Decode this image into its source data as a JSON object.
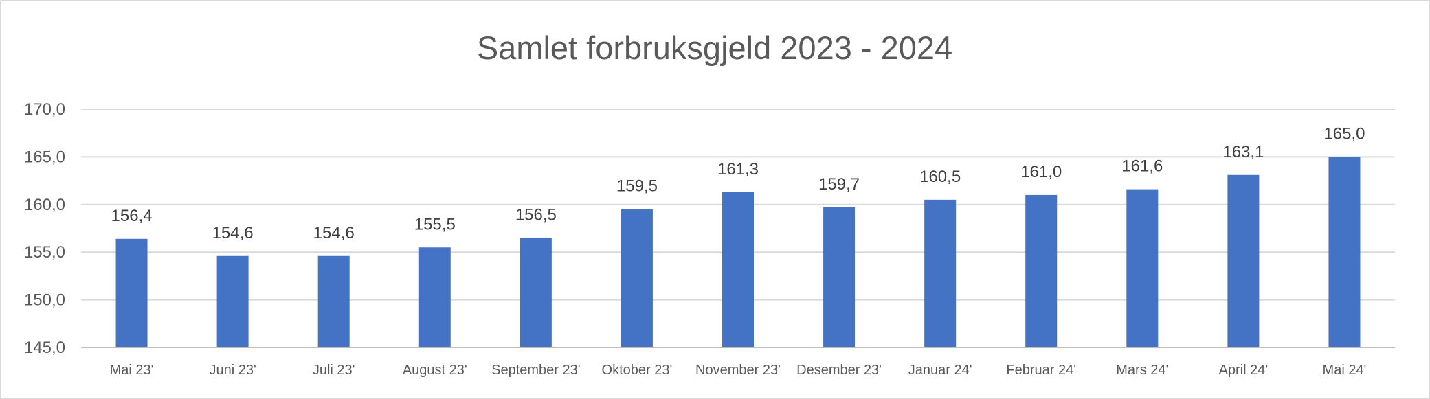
{
  "chart_data": {
    "type": "bar",
    "title": "Samlet forbruksgjeld 2023 - 2024",
    "xlabel": "",
    "ylabel": "",
    "categories": [
      "Mai 23'",
      "Juni 23'",
      "Juli 23'",
      "August 23'",
      "September 23'",
      "Oktober 23'",
      "November 23'",
      "Desember 23'",
      "Januar 24'",
      "Februar 24'",
      "Mars 24'",
      "April 24'",
      "Mai 24'"
    ],
    "values": [
      156.4,
      154.6,
      154.6,
      155.5,
      156.5,
      159.5,
      161.3,
      159.7,
      160.5,
      161.0,
      161.6,
      163.1,
      165.0
    ],
    "data_labels": [
      "156,4",
      "154,6",
      "154,6",
      "155,5",
      "156,5",
      "159,5",
      "161,3",
      "159,7",
      "160,5",
      "161,0",
      "161,6",
      "163,1",
      "165,0"
    ],
    "ylim": [
      145,
      170
    ],
    "yticks": [
      145,
      150,
      155,
      160,
      165,
      170
    ],
    "ytick_labels": [
      "145,0",
      "150,0",
      "155,0",
      "160,0",
      "165,0",
      "170,0"
    ],
    "grid": true,
    "legend": "none",
    "bar_color": "#4472c4"
  }
}
